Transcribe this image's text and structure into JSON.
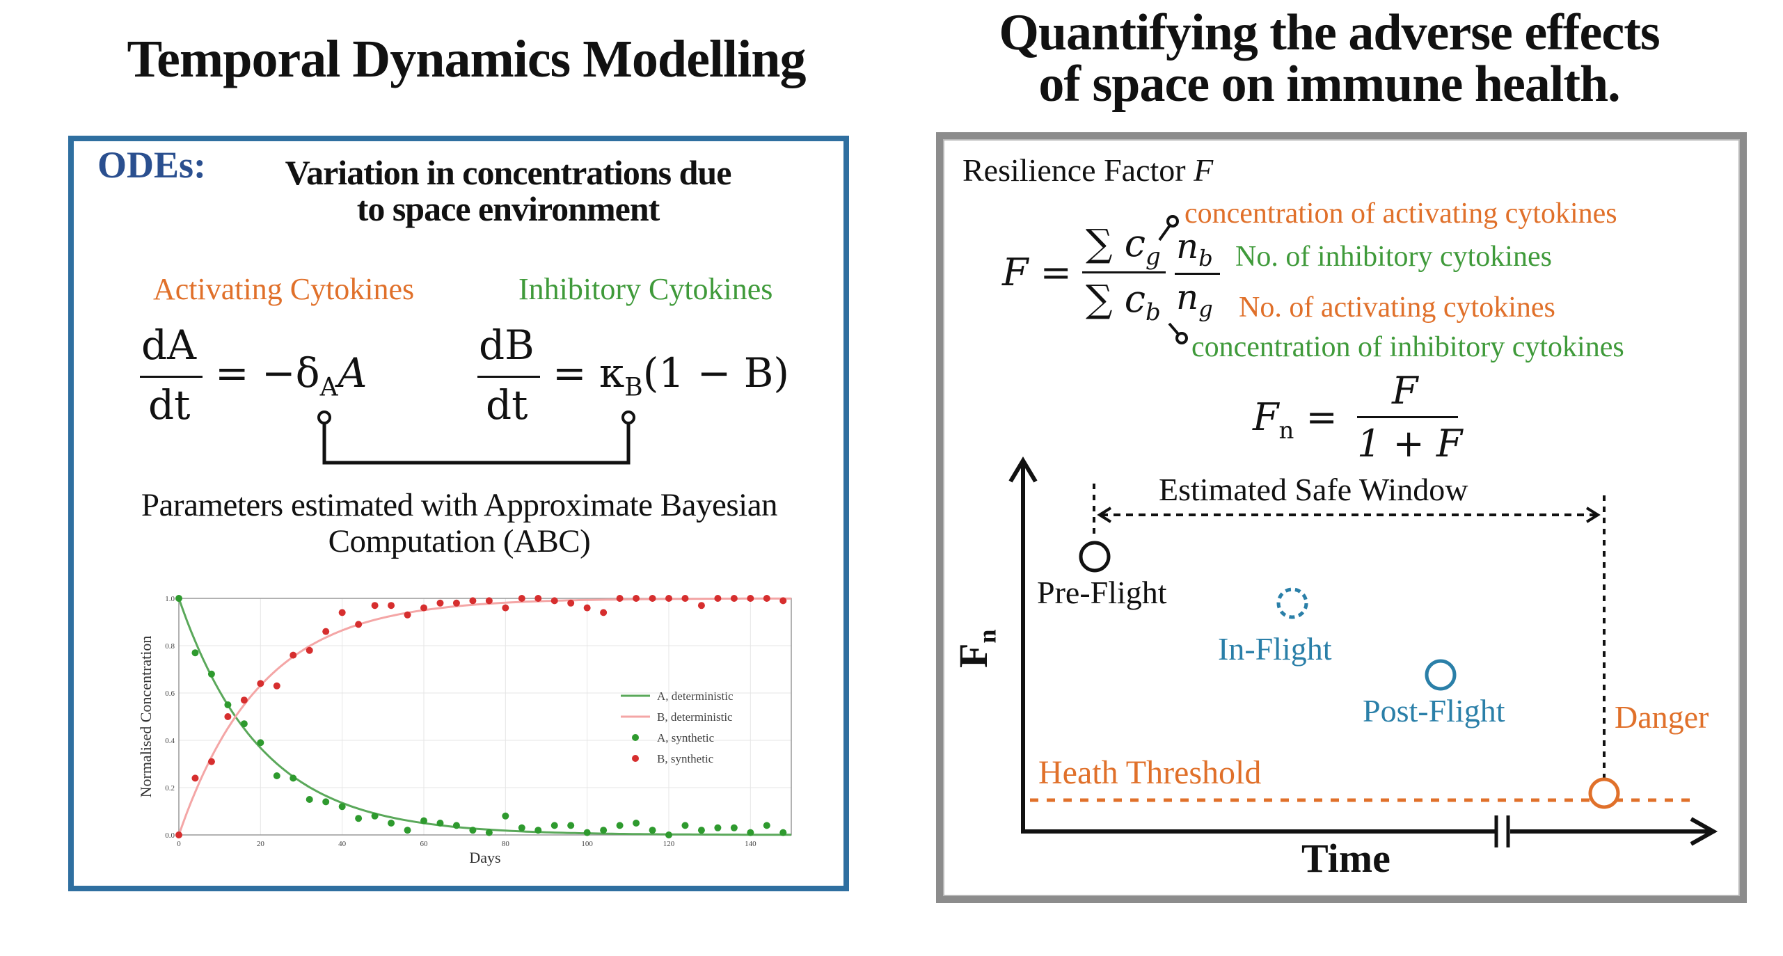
{
  "left": {
    "title": "Temporal Dynamics Modelling",
    "odes_label": "ODEs:",
    "odes_description_line1": "Variation in concentrations due",
    "odes_description_line2": "to space environment",
    "activating_label": "Activating Cytokines",
    "inhibitory_label": "Inhibitory Cytokines",
    "eq1_num": "dA",
    "eq1_den": "dt",
    "eq1_rhs": "= −δ",
    "eq1_sub": "A",
    "eq1_end": "A",
    "eq2_num": "dB",
    "eq2_den": "dt",
    "eq2_rhs": "= κ",
    "eq2_sub": "B",
    "eq2_end": "(1 − B)",
    "abc_line1": "Parameters estimated with Approximate Bayesian",
    "abc_line2": "Computation (ABC)"
  },
  "chart_data": {
    "type": "line",
    "xlabel": "Days",
    "ylabel": "Normalised Concentration",
    "xlim": [
      0,
      150
    ],
    "ylim": [
      0,
      1.0
    ],
    "xticks": [
      0,
      20,
      40,
      60,
      80,
      100,
      120,
      140
    ],
    "yticks": [
      "0.0",
      "0.2",
      "0.4",
      "0.6",
      "0.8",
      "1.0"
    ],
    "grid": true,
    "legend_position": "center-right",
    "series": [
      {
        "name": "A, deterministic",
        "kind": "line",
        "color": "#5aa85a",
        "decay_rate": 0.05
      },
      {
        "name": "B, deterministic",
        "kind": "line",
        "color": "#f4a6a6",
        "rise_rate": 0.05
      },
      {
        "name": "A, synthetic",
        "kind": "scatter",
        "color": "#2e9a2e",
        "x": [
          0,
          4,
          8,
          12,
          16,
          20,
          24,
          28,
          32,
          36,
          40,
          44,
          48,
          52,
          56,
          60,
          64,
          68,
          72,
          76,
          80,
          84,
          88,
          92,
          96,
          100,
          104,
          108,
          112,
          116,
          120,
          124,
          128,
          132,
          136,
          140,
          144,
          148
        ],
        "y": [
          1.0,
          0.77,
          0.68,
          0.55,
          0.47,
          0.39,
          0.25,
          0.24,
          0.15,
          0.14,
          0.12,
          0.07,
          0.08,
          0.05,
          0.02,
          0.06,
          0.05,
          0.04,
          0.02,
          0.01,
          0.08,
          0.03,
          0.02,
          0.04,
          0.04,
          0.01,
          0.02,
          0.04,
          0.05,
          0.02,
          0.0,
          0.04,
          0.02,
          0.03,
          0.03,
          0.01,
          0.04,
          0.01
        ]
      },
      {
        "name": "B, synthetic",
        "kind": "scatter",
        "color": "#d62e2e",
        "x": [
          0,
          4,
          8,
          12,
          16,
          20,
          24,
          28,
          32,
          36,
          40,
          44,
          48,
          52,
          56,
          60,
          64,
          68,
          72,
          76,
          80,
          84,
          88,
          92,
          96,
          100,
          104,
          108,
          112,
          116,
          120,
          124,
          128,
          132,
          136,
          140,
          144,
          148
        ],
        "y": [
          0.0,
          0.24,
          0.31,
          0.5,
          0.57,
          0.64,
          0.63,
          0.76,
          0.78,
          0.86,
          0.94,
          0.89,
          0.97,
          0.97,
          0.93,
          0.96,
          0.98,
          0.98,
          0.99,
          0.99,
          0.96,
          1.0,
          1.0,
          0.99,
          0.98,
          0.96,
          0.94,
          1.0,
          1.0,
          1.0,
          1.0,
          1.0,
          0.97,
          1.0,
          1.0,
          1.0,
          1.0,
          0.99
        ]
      }
    ]
  },
  "right": {
    "title_line1": "Quantifying the adverse effects",
    "title_line2": "of space on immune health.",
    "resilience_label": "Resilience Factor",
    "resilience_symbol": "F",
    "eq_lhs": "F =",
    "num_sum": "∑ c",
    "num_sub": "g",
    "den_sum": "∑ c",
    "den_sub": "b",
    "frac2_num": "n",
    "frac2_num_sub": "b",
    "frac2_den": "n",
    "frac2_den_sub": "g",
    "ann_cg": "concentration of activating cytokines",
    "ann_nb": "No. of inhibitory cytokines",
    "ann_ng": "No. of activating cytokines",
    "ann_cb": "concentration of inhibitory cytokines",
    "fn_lhs": "F",
    "fn_sub": "n",
    "fn_eq": "=",
    "fn_num": "F",
    "fn_den": "1 + F",
    "axis_y": "F",
    "axis_y_sub": "n",
    "axis_x": "Time",
    "safe_window": "Estimated Safe Window",
    "pre_flight": "Pre-Flight",
    "in_flight": "In-Flight",
    "post_flight": "Post-Flight",
    "danger": "Danger",
    "threshold": "Heath Threshold",
    "colors": {
      "orange": "#e0702a",
      "green": "#3f9a3a",
      "blue": "#2a7fa8",
      "dark_blue": "#2a4f8f"
    }
  }
}
